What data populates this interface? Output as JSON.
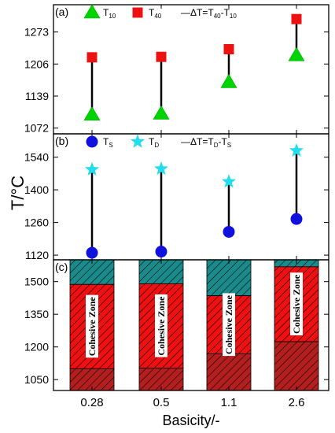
{
  "chart_data": [
    {
      "type": "scatter",
      "panel_label": "(a)",
      "categories": [
        "0.28",
        "0.5",
        "1.1",
        "2.6"
      ],
      "ylim": [
        1060,
        1330
      ],
      "yticks": [
        "1072",
        "1139",
        "1206",
        "1273"
      ],
      "ytick_values": [
        1072,
        1139,
        1206,
        1273
      ],
      "series": [
        {
          "name": "T",
          "sub": "10",
          "marker": "triangle",
          "color": "#00d400",
          "values": [
            1100,
            1102,
            1168,
            1224
          ]
        },
        {
          "name": "T",
          "sub": "40",
          "marker": "square",
          "color": "#ee1111",
          "values": [
            1220,
            1221,
            1237,
            1300
          ]
        }
      ],
      "legend_line": {
        "prefix": "—ΔT=T",
        "sub1": "40",
        "mid": "-T",
        "sub2": "10"
      }
    },
    {
      "type": "scatter",
      "panel_label": "(b)",
      "categories": [
        "0.28",
        "0.5",
        "1.1",
        "2.6"
      ],
      "ylim": [
        1100,
        1640
      ],
      "yticks": [
        "1120",
        "1260",
        "1400",
        "1540"
      ],
      "ytick_values": [
        1120,
        1260,
        1400,
        1540
      ],
      "series": [
        {
          "name": "T",
          "sub": "S",
          "marker": "circle",
          "color": "#1111dd",
          "values": [
            1130,
            1135,
            1220,
            1275
          ]
        },
        {
          "name": "T",
          "sub": "D",
          "marker": "star",
          "color": "#22ddee",
          "values": [
            1487,
            1490,
            1435,
            1568
          ]
        }
      ],
      "legend_line": {
        "prefix": "—ΔT=T",
        "sub1": "D",
        "mid": "-T",
        "sub2": "S"
      }
    },
    {
      "type": "bar",
      "panel_label": "(c)",
      "categories": [
        "0.28",
        "0.5",
        "1.1",
        "2.6"
      ],
      "ylim": [
        1000,
        1600
      ],
      "yticks": [
        "1050",
        "1200",
        "1350",
        "1500"
      ],
      "ytick_values": [
        1050,
        1200,
        1350,
        1500
      ],
      "bottom_values": [
        1100,
        1102,
        1168,
        1224
      ],
      "mid_values": [
        1487,
        1490,
        1435,
        1568
      ],
      "annotation": "Cohesive Zone",
      "colors": {
        "bottom": "#b31f1f",
        "mid": "#ee1111",
        "top": "#1a8a8a"
      }
    }
  ],
  "ylabel": "T/°C",
  "xlabel": "Basicity/-"
}
